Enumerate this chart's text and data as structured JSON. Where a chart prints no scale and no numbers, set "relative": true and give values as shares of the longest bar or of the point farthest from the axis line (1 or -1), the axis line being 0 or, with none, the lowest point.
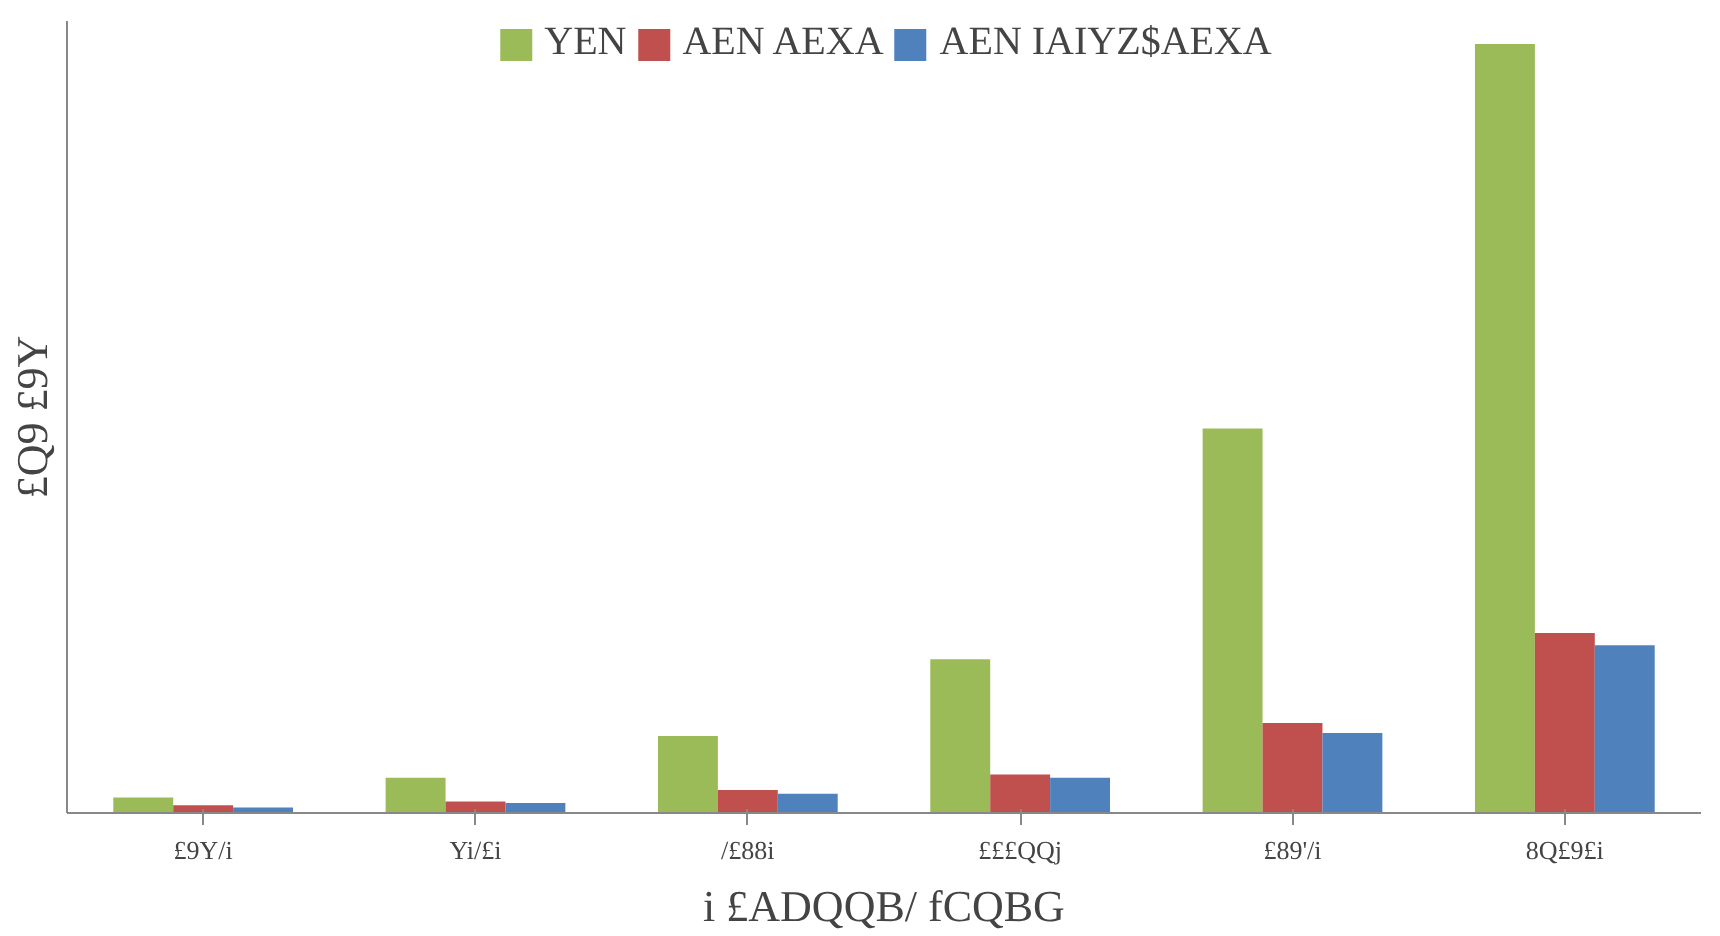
{
  "chart_data": {
    "type": "bar",
    "xlabel": "i £ADQQB/ fCQBG",
    "ylabel": "£Q9 £9Y",
    "relative": true,
    "categories": [
      "£9Y/i",
      "Yi/£i",
      "/£88i",
      "£££QQj",
      "£89'/i",
      "8Q£9£i"
    ],
    "series": [
      {
        "name": "YEN",
        "color": "#9bbb59",
        "values": [
          0.02,
          0.046,
          0.1,
          0.2,
          0.5,
          1
        ]
      },
      {
        "name": "AEN AEXA",
        "color": "#c0504d",
        "values": [
          0.01,
          0.015,
          0.03,
          0.05,
          0.117,
          0.234
        ]
      },
      {
        "name": "AEN IAIYZ$AEXA",
        "color": "#4f81bd",
        "values": [
          0.007,
          0.013,
          0.025,
          0.046,
          0.104,
          0.218
        ]
      }
    ],
    "legend": "top"
  }
}
